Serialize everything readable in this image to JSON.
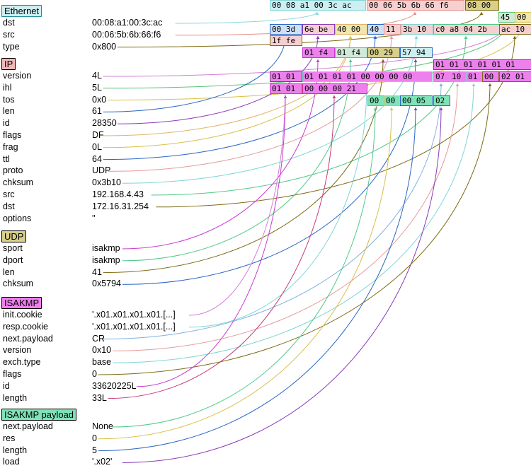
{
  "layers": [
    {
      "id": "ethernet",
      "header": "Ethernet",
      "color": "#cdeff1",
      "border": "#1e8a97",
      "fields": [
        {
          "name": "dst",
          "value": "00:08:a1:00:3c:ac",
          "color": "#8ad7df"
        },
        {
          "name": "src",
          "value": "00:06:5b:6b:66:f6",
          "color": "#e58f8a"
        },
        {
          "name": "type",
          "value": "0x800",
          "color": "#7c6a13"
        }
      ]
    },
    {
      "id": "ip",
      "header": "IP",
      "color": "#f2b8b8",
      "border": "#000000",
      "fields": [
        {
          "name": "version",
          "value": "4L",
          "color": "#d37fd8"
        },
        {
          "name": "ihl",
          "value": "5L",
          "color": "#5cc47a"
        },
        {
          "name": "tos",
          "value": "0x0",
          "color": "#d8c04a"
        },
        {
          "name": "len",
          "value": "61",
          "color": "#2a66c4"
        },
        {
          "name": "id",
          "value": "28350",
          "color": "#8a3ab8"
        },
        {
          "name": "flags",
          "value": "DF",
          "color": "#e0b46a"
        },
        {
          "name": "frag",
          "value": "0L",
          "color": "#d8c04a"
        },
        {
          "name": "ttl",
          "value": "64",
          "color": "#2a66c4"
        },
        {
          "name": "proto",
          "value": "UDP",
          "color": "#e59a9a"
        },
        {
          "name": "chksum",
          "value": "0x3b10",
          "color": "#7fd4d4"
        },
        {
          "name": "src",
          "value": "192.168.4.43",
          "color": "#4fc98a"
        },
        {
          "name": "dst",
          "value": "172.16.31.254",
          "color": "#7c6a13"
        },
        {
          "name": "options",
          "value": "''",
          "color": "#000000"
        }
      ]
    },
    {
      "id": "udp",
      "header": "UDP",
      "color": "#d8cf8a",
      "border": "#000000",
      "fields": [
        {
          "name": "sport",
          "value": "isakmp",
          "color": "#c83ad0"
        },
        {
          "name": "dport",
          "value": "isakmp",
          "color": "#4fc98a"
        },
        {
          "name": "len",
          "value": "41",
          "color": "#7c6a13"
        },
        {
          "name": "chksum",
          "value": "0x5794",
          "color": "#2a66c4"
        }
      ]
    },
    {
      "id": "isakmp",
      "header": "ISAKMP",
      "color": "#ee80ee",
      "border": "#000000",
      "fields": [
        {
          "name": "init.cookie",
          "value": "'.x01.x01.x01.x01.[...]",
          "color": "#d37fd8"
        },
        {
          "name": "resp.cookie",
          "value": "'.x01.x01.x01.x01.[...]",
          "color": "#7fd4d4"
        },
        {
          "name": "next.payload",
          "value": "CR",
          "color": "#7fb0e0"
        },
        {
          "name": "version",
          "value": "0x10",
          "color": "#e59a9a"
        },
        {
          "name": "exch.type",
          "value": "base",
          "color": "#7fd4d4"
        },
        {
          "name": "flags",
          "value": "0",
          "color": "#7c6a13"
        },
        {
          "name": "id",
          "value": "33620225L",
          "color": "#c83ad0"
        },
        {
          "name": "length",
          "value": "33L",
          "color": "#c83a7a"
        }
      ]
    },
    {
      "id": "isakmp_payload",
      "header": "ISAKMP payload",
      "color": "#7fe3b8",
      "border": "#000000",
      "fields": [
        {
          "name": "next.payload",
          "value": "None",
          "color": "#4fc98a"
        },
        {
          "name": "res",
          "value": "0",
          "color": "#d8c04a"
        },
        {
          "name": "length",
          "value": "5",
          "color": "#2a66c4"
        },
        {
          "name": "load",
          "value": "'.x02'",
          "color": "#8a3ab8"
        }
      ]
    }
  ],
  "hex_boxes": [
    {
      "text": "00 08 a1 00 3c ac",
      "fill": "#cdeff1",
      "border": "#7fd4d4"
    },
    {
      "text": "00 06 5b 6b 66 f6",
      "fill": "#f6d0d0",
      "border": "#e58f8a"
    },
    {
      "text": "08 00",
      "fill": "#d8cf8a",
      "border": "#7c6a13"
    },
    {
      "text": "45",
      "fill": "#cfead8",
      "border": "#5cc47a"
    },
    {
      "text": "00",
      "fill": "#efe6b0",
      "border": "#d8c04a"
    },
    {
      "text": "00 3d",
      "fill": "#cfe0f6",
      "border": "#2a66c4"
    },
    {
      "text": "6e be",
      "fill": "#f6d0d0",
      "border": "#8a3ab8"
    },
    {
      "text": "40 00",
      "fill": "#efe6b0",
      "border": "#e0b46a"
    },
    {
      "text": "40",
      "fill": "#cfe0f6",
      "border": "#2a66c4"
    },
    {
      "text": "11",
      "fill": "#f6d0d0",
      "border": "#e59a9a"
    },
    {
      "text": "3b 10",
      "fill": "#f6d0d0",
      "border": "#7fd4d4"
    },
    {
      "text": "c0 a8 04 2b",
      "fill": "#f6d0d0",
      "border": "#4fc98a"
    },
    {
      "text": "ac 10",
      "fill": "#f6d0d0",
      "border": "#7c6a13"
    },
    {
      "text": "1f fe",
      "fill": "#f6d0d0",
      "border": "#7c6a13"
    },
    {
      "text": "01 f4",
      "fill": "#ee80ee",
      "border": "#c83ad0"
    },
    {
      "text": "01 f4",
      "fill": "#cfead8",
      "border": "#4fc98a"
    },
    {
      "text": "00 29",
      "fill": "#d8cf8a",
      "border": "#7c6a13"
    },
    {
      "text": "57 94",
      "fill": "#cdeff1",
      "border": "#2a66c4"
    },
    {
      "text": "01 01 01 01 01 01",
      "fill": "#ee80ee",
      "border": "#7c3a80"
    },
    {
      "text": "01 01",
      "fill": "#ee80ee",
      "border": "#7c3a80"
    },
    {
      "text": "01 01 01 01 00 00 00 00",
      "fill": "#ee80ee",
      "border": "#7fd4d4"
    },
    {
      "text": "07",
      "fill": "#ee80ee",
      "border": "#7fb0e0"
    },
    {
      "text": "10",
      "fill": "#ee80ee",
      "border": "#e59a9a"
    },
    {
      "text": "01",
      "fill": "#ee80ee",
      "border": "#7fd4d4"
    },
    {
      "text": "00",
      "fill": "#ee80ee",
      "border": "#7c6a13"
    },
    {
      "text": "02 01",
      "fill": "#ee80ee",
      "border": "#7c6a13"
    },
    {
      "text": "01 01",
      "fill": "#ee80ee",
      "border": "#c83ad0"
    },
    {
      "text": "00 00 00 21",
      "fill": "#ee80ee",
      "border": "#c83a7a"
    },
    {
      "text": "00",
      "fill": "#7fe3b8",
      "border": "#4fc98a"
    },
    {
      "text": "00",
      "fill": "#7fe3b8",
      "border": "#d8c04a"
    },
    {
      "text": "00 05",
      "fill": "#7fe3b8",
      "border": "#2a66c4"
    },
    {
      "text": "02",
      "fill": "#7fe3b8",
      "border": "#8a3ab8"
    }
  ]
}
